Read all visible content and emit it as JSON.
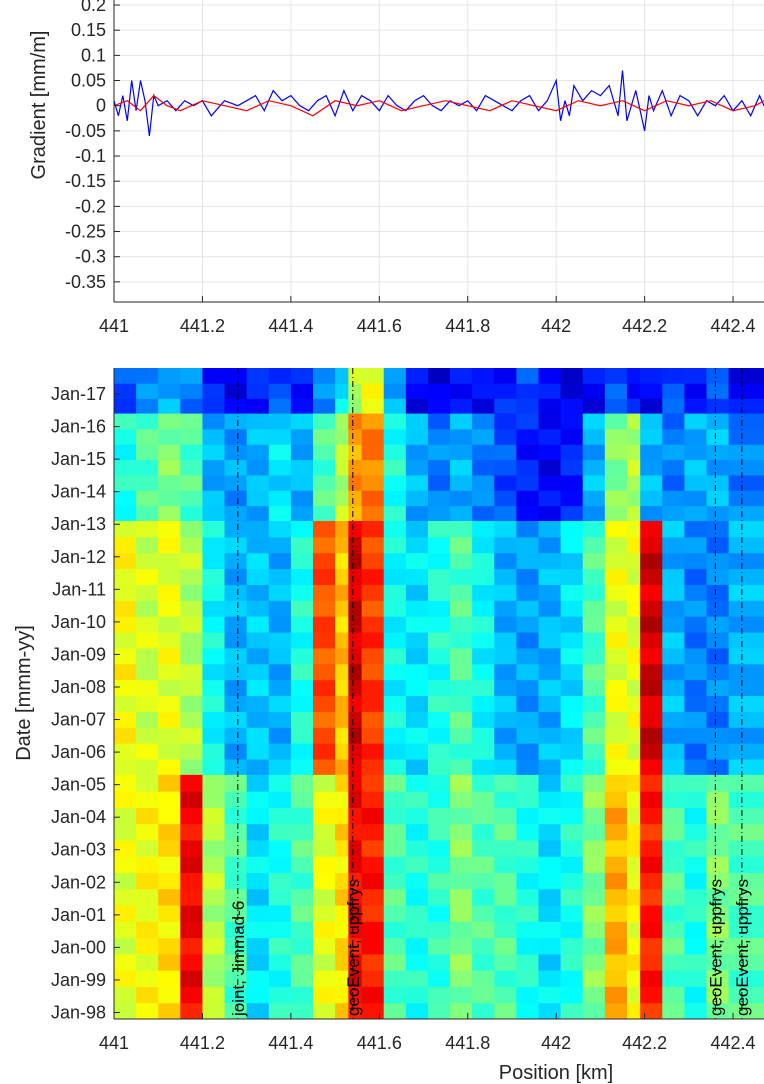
{
  "colors": {
    "blue_series": "#0000ff",
    "red_series": "#ff0000",
    "grid": "#e6e6e6",
    "axis": "#262626",
    "colormap": "jet"
  },
  "chart_data": [
    {
      "type": "line",
      "title": "",
      "xlabel": "",
      "ylabel": "Gradient [mm/m]",
      "xlim": [
        441,
        442.47
      ],
      "ylim": [
        -0.39,
        0.21
      ],
      "grid": true,
      "x_ticks": [
        441,
        441.2,
        441.4,
        441.6,
        441.8,
        442,
        442.2,
        442.4
      ],
      "x_tick_labels": [
        "441",
        "441.2",
        "441.4",
        "441.6",
        "441.8",
        "442",
        "442.2",
        "442.4"
      ],
      "y_ticks": [
        0.2,
        0.15,
        0.1,
        0.05,
        0,
        -0.05,
        -0.1,
        -0.15,
        -0.2,
        -0.25,
        -0.3,
        -0.35
      ],
      "y_tick_labels": [
        "0.2",
        "0.15",
        "0.1",
        "0.05",
        "0",
        "-0.05",
        "-0.1",
        "-0.15",
        "-0.2",
        "-0.25",
        "-0.3",
        "-0.35"
      ],
      "series": [
        {
          "color": "#0000ff",
          "x": [
            441.0,
            441.01,
            441.02,
            441.03,
            441.04,
            441.05,
            441.06,
            441.07,
            441.08,
            441.09,
            441.1,
            441.12,
            441.14,
            441.16,
            441.18,
            441.2,
            441.22,
            441.25,
            441.28,
            441.3,
            441.32,
            441.34,
            441.36,
            441.38,
            441.4,
            441.42,
            441.44,
            441.46,
            441.48,
            441.5,
            441.52,
            441.54,
            441.56,
            441.58,
            441.6,
            441.62,
            441.64,
            441.66,
            441.68,
            441.7,
            441.72,
            441.74,
            441.76,
            441.78,
            441.8,
            441.82,
            441.84,
            441.86,
            441.88,
            441.9,
            441.92,
            441.94,
            441.96,
            441.98,
            442.0,
            442.01,
            442.02,
            442.03,
            442.04,
            442.06,
            442.08,
            442.1,
            442.12,
            442.14,
            442.15,
            442.16,
            442.18,
            442.2,
            442.21,
            442.22,
            442.24,
            442.26,
            442.28,
            442.3,
            442.32,
            442.34,
            442.36,
            442.38,
            442.4,
            442.42,
            442.44,
            442.46,
            442.47
          ],
          "y": [
            0.01,
            -0.02,
            0.02,
            -0.03,
            0.05,
            -0.01,
            0.05,
            0.01,
            -0.06,
            0.02,
            0.0,
            0.01,
            -0.01,
            0.01,
            0.0,
            0.01,
            -0.02,
            0.01,
            0.0,
            0.01,
            0.02,
            -0.01,
            0.03,
            0.01,
            0.02,
            0.0,
            -0.01,
            0.01,
            0.02,
            -0.02,
            0.03,
            -0.01,
            0.02,
            0.01,
            -0.01,
            0.02,
            0.0,
            -0.01,
            0.01,
            0.02,
            0.0,
            -0.01,
            0.01,
            0.0,
            0.01,
            -0.01,
            0.02,
            0.01,
            0.0,
            -0.01,
            0.01,
            0.02,
            -0.01,
            0.01,
            0.05,
            -0.03,
            0.01,
            -0.02,
            0.04,
            0.01,
            0.03,
            0.02,
            0.04,
            -0.02,
            0.07,
            -0.03,
            0.03,
            -0.05,
            0.02,
            -0.01,
            0.03,
            -0.02,
            0.02,
            0.01,
            -0.02,
            0.01,
            0.0,
            0.02,
            -0.01,
            0.01,
            -0.02,
            0.02,
            0.0
          ]
        },
        {
          "color": "#ff0000",
          "x": [
            441.0,
            441.03,
            441.06,
            441.09,
            441.12,
            441.15,
            441.2,
            441.25,
            441.3,
            441.35,
            441.4,
            441.45,
            441.5,
            441.55,
            441.6,
            441.65,
            441.7,
            441.75,
            441.8,
            441.85,
            441.9,
            441.95,
            442.0,
            442.05,
            442.1,
            442.15,
            442.2,
            442.25,
            442.3,
            442.35,
            442.4,
            442.45,
            442.47
          ],
          "y": [
            0.0,
            0.01,
            -0.01,
            0.02,
            0.0,
            -0.01,
            0.01,
            0.0,
            -0.01,
            0.01,
            0.0,
            -0.02,
            0.01,
            0.0,
            0.01,
            -0.01,
            0.0,
            0.01,
            0.0,
            -0.01,
            0.01,
            0.0,
            -0.01,
            0.01,
            0.0,
            0.01,
            -0.01,
            0.01,
            0.0,
            0.01,
            -0.01,
            0.0,
            0.01
          ]
        }
      ]
    },
    {
      "type": "heatmap",
      "title": "",
      "xlabel": "Position [km]",
      "ylabel": "Date [mmm-yy]",
      "xlim": [
        441,
        442.47
      ],
      "x_ticks": [
        441,
        441.2,
        441.4,
        441.6,
        441.8,
        442,
        442.2,
        442.4
      ],
      "x_tick_labels": [
        "441",
        "441.2",
        "441.4",
        "441.6",
        "441.8",
        "442",
        "442.2",
        "442.4"
      ],
      "y_tick_labels": [
        "Jan-17",
        "Jan-16",
        "Jan-15",
        "Jan-14",
        "Jan-13",
        "Jan-12",
        "Jan-11",
        "Jan-10",
        "Jan-09",
        "Jan-08",
        "Jan-07",
        "Jan-06",
        "Jan-05",
        "Jan-04",
        "Jan-03",
        "Jan-02",
        "Jan-01",
        "Jan-00",
        "Jan-99",
        "Jan-98"
      ],
      "y_tick_years": [
        2017,
        2016,
        2015,
        2014,
        2013,
        2012,
        2011,
        2010,
        2009,
        2008,
        2007,
        2006,
        2005,
        2004,
        2003,
        2002,
        2001,
        2000,
        1999,
        1998
      ],
      "ylim": [
        1997.8,
        2017.8
      ],
      "colormap": "jet",
      "column_edges": [
        441.0,
        441.05,
        441.1,
        441.15,
        441.2,
        441.25,
        441.3,
        441.35,
        441.4,
        441.45,
        441.5,
        441.53,
        441.56,
        441.61,
        441.66,
        441.71,
        441.76,
        441.81,
        441.86,
        441.91,
        441.96,
        442.01,
        442.06,
        442.11,
        442.16,
        442.19,
        442.24,
        442.29,
        442.34,
        442.39,
        442.47
      ],
      "periods": [
        {
          "from": 2016.4,
          "to": 2017.8,
          "values": [
            0.2,
            0.25,
            0.3,
            0.25,
            0.15,
            0.12,
            0.15,
            0.2,
            0.15,
            0.25,
            0.35,
            0.55,
            0.6,
            0.3,
            0.12,
            0.1,
            0.15,
            0.12,
            0.15,
            0.2,
            0.12,
            0.1,
            0.12,
            0.2,
            0.15,
            0.12,
            0.2,
            0.15,
            0.2,
            0.12
          ]
        },
        {
          "from": 2013.1,
          "to": 2016.4,
          "values": [
            0.4,
            0.45,
            0.5,
            0.45,
            0.3,
            0.28,
            0.3,
            0.35,
            0.3,
            0.45,
            0.55,
            0.72,
            0.75,
            0.4,
            0.3,
            0.25,
            0.3,
            0.25,
            0.2,
            0.15,
            0.12,
            0.15,
            0.3,
            0.5,
            0.55,
            0.3,
            0.25,
            0.3,
            0.3,
            0.25
          ]
        },
        {
          "from": 2005.3,
          "to": 2013.1,
          "values": [
            0.62,
            0.58,
            0.6,
            0.55,
            0.38,
            0.3,
            0.32,
            0.3,
            0.4,
            0.8,
            0.68,
            0.92,
            0.82,
            0.38,
            0.35,
            0.4,
            0.45,
            0.38,
            0.3,
            0.28,
            0.3,
            0.35,
            0.45,
            0.6,
            0.6,
            0.92,
            0.3,
            0.25,
            0.25,
            0.3
          ]
        },
        {
          "from": 1997.8,
          "to": 2005.3,
          "values": [
            0.6,
            0.62,
            0.65,
            0.88,
            0.55,
            0.45,
            0.35,
            0.4,
            0.45,
            0.6,
            0.65,
            0.88,
            0.85,
            0.45,
            0.4,
            0.42,
            0.5,
            0.45,
            0.45,
            0.4,
            0.35,
            0.4,
            0.5,
            0.7,
            0.62,
            0.85,
            0.45,
            0.4,
            0.5,
            0.45
          ]
        }
      ],
      "annotations": [
        {
          "x": 441.28,
          "label": "joint, Jimmad-6"
        },
        {
          "x": 441.54,
          "label": "geoEvent, uppfrys"
        },
        {
          "x": 442.36,
          "label": "geoEvent, uppfrys"
        },
        {
          "x": 442.42,
          "label": "geoEvent, uppfrys"
        }
      ]
    }
  ]
}
